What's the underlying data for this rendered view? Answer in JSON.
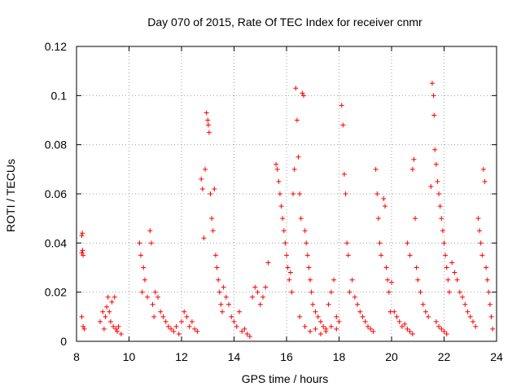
{
  "chart_data": {
    "type": "scatter",
    "title": "Day 070 of 2015, Rate Of TEC Index for receiver cnmr",
    "xlabel": "GPS time / hours",
    "ylabel": "ROTI / TECUs",
    "xlim": [
      8,
      24
    ],
    "ylim": [
      0,
      0.12
    ],
    "xticks": [
      8,
      10,
      12,
      14,
      16,
      18,
      20,
      22,
      24
    ],
    "xtick_labels": [
      "8",
      "10",
      "12",
      "14",
      "16",
      "18",
      "20",
      "22",
      "24"
    ],
    "yticks": [
      0,
      0.02,
      0.04,
      0.06,
      0.08,
      0.1,
      0.12
    ],
    "ytick_labels": [
      "0",
      "0.02",
      "0.04",
      "0.06",
      "0.08",
      "0.1",
      "0.12"
    ],
    "grid": true,
    "marker": "+",
    "color": "#ff0000",
    "series": [
      {
        "name": "ROTI",
        "points": [
          [
            8.2,
            0.043
          ],
          [
            8.22,
            0.044
          ],
          [
            8.2,
            0.036
          ],
          [
            8.25,
            0.035
          ],
          [
            8.23,
            0.037
          ],
          [
            8.2,
            0.01
          ],
          [
            8.25,
            0.006
          ],
          [
            8.3,
            0.005
          ],
          [
            8.9,
            0.008
          ],
          [
            9.0,
            0.012
          ],
          [
            9.05,
            0.005
          ],
          [
            9.1,
            0.01
          ],
          [
            9.15,
            0.014
          ],
          [
            9.2,
            0.018
          ],
          [
            9.25,
            0.012
          ],
          [
            9.3,
            0.008
          ],
          [
            9.35,
            0.016
          ],
          [
            9.4,
            0.006
          ],
          [
            9.45,
            0.018
          ],
          [
            9.5,
            0.005
          ],
          [
            9.55,
            0.004
          ],
          [
            9.6,
            0.006
          ],
          [
            9.7,
            0.003
          ],
          [
            10.4,
            0.04
          ],
          [
            10.45,
            0.035
          ],
          [
            10.5,
            0.02
          ],
          [
            10.55,
            0.03
          ],
          [
            10.6,
            0.025
          ],
          [
            10.7,
            0.018
          ],
          [
            10.8,
            0.045
          ],
          [
            10.85,
            0.04
          ],
          [
            10.9,
            0.015
          ],
          [
            10.95,
            0.01
          ],
          [
            11.0,
            0.02
          ],
          [
            11.1,
            0.018
          ],
          [
            11.2,
            0.012
          ],
          [
            11.3,
            0.01
          ],
          [
            11.4,
            0.008
          ],
          [
            11.5,
            0.006
          ],
          [
            11.6,
            0.005
          ],
          [
            11.7,
            0.004
          ],
          [
            11.8,
            0.006
          ],
          [
            11.9,
            0.003
          ],
          [
            12.0,
            0.008
          ],
          [
            12.1,
            0.012
          ],
          [
            12.2,
            0.01
          ],
          [
            12.3,
            0.006
          ],
          [
            12.4,
            0.008
          ],
          [
            12.5,
            0.005
          ],
          [
            12.6,
            0.004
          ],
          [
            12.75,
            0.066
          ],
          [
            12.8,
            0.062
          ],
          [
            12.85,
            0.042
          ],
          [
            12.9,
            0.07
          ],
          [
            12.95,
            0.093
          ],
          [
            13.0,
            0.09
          ],
          [
            13.02,
            0.088
          ],
          [
            13.05,
            0.085
          ],
          [
            13.1,
            0.06
          ],
          [
            13.15,
            0.05
          ],
          [
            13.2,
            0.045
          ],
          [
            13.25,
            0.062
          ],
          [
            13.3,
            0.035
          ],
          [
            13.35,
            0.03
          ],
          [
            13.4,
            0.025
          ],
          [
            13.45,
            0.02
          ],
          [
            13.5,
            0.015
          ],
          [
            13.55,
            0.012
          ],
          [
            13.6,
            0.022
          ],
          [
            13.7,
            0.018
          ],
          [
            13.8,
            0.015
          ],
          [
            13.9,
            0.01
          ],
          [
            14.0,
            0.008
          ],
          [
            14.1,
            0.006
          ],
          [
            14.2,
            0.012
          ],
          [
            14.3,
            0.004
          ],
          [
            14.4,
            0.005
          ],
          [
            14.5,
            0.003
          ],
          [
            14.6,
            0.002
          ],
          [
            14.7,
            0.018
          ],
          [
            14.8,
            0.022
          ],
          [
            14.9,
            0.02
          ],
          [
            15.0,
            0.015
          ],
          [
            15.1,
            0.018
          ],
          [
            15.2,
            0.022
          ],
          [
            15.3,
            0.032
          ],
          [
            15.6,
            0.072
          ],
          [
            15.65,
            0.07
          ],
          [
            15.7,
            0.065
          ],
          [
            15.75,
            0.06
          ],
          [
            15.8,
            0.055
          ],
          [
            15.85,
            0.05
          ],
          [
            15.9,
            0.045
          ],
          [
            15.95,
            0.04
          ],
          [
            16.0,
            0.035
          ],
          [
            16.05,
            0.03
          ],
          [
            16.1,
            0.025
          ],
          [
            16.15,
            0.028
          ],
          [
            16.2,
            0.02
          ],
          [
            16.25,
            0.06
          ],
          [
            16.3,
            0.07
          ],
          [
            16.35,
            0.103
          ],
          [
            16.4,
            0.09
          ],
          [
            16.45,
            0.075
          ],
          [
            16.5,
            0.06
          ],
          [
            16.55,
            0.05
          ],
          [
            16.6,
            0.101
          ],
          [
            16.65,
            0.1
          ],
          [
            16.7,
            0.045
          ],
          [
            16.75,
            0.04
          ],
          [
            16.8,
            0.035
          ],
          [
            16.85,
            0.03
          ],
          [
            16.9,
            0.025
          ],
          [
            16.95,
            0.02
          ],
          [
            17.0,
            0.015
          ],
          [
            17.1,
            0.012
          ],
          [
            17.2,
            0.01
          ],
          [
            17.3,
            0.008
          ],
          [
            17.4,
            0.006
          ],
          [
            17.5,
            0.005
          ],
          [
            17.6,
            0.015
          ],
          [
            17.7,
            0.02
          ],
          [
            17.8,
            0.025
          ],
          [
            17.9,
            0.01
          ],
          [
            18.0,
            0.008
          ],
          [
            16.5,
            0.01
          ],
          [
            16.7,
            0.006
          ],
          [
            16.9,
            0.004
          ],
          [
            17.1,
            0.005
          ],
          [
            17.3,
            0.003
          ],
          [
            17.5,
            0.004
          ],
          [
            17.7,
            0.006
          ],
          [
            17.9,
            0.005
          ],
          [
            18.1,
            0.096
          ],
          [
            18.15,
            0.088
          ],
          [
            18.2,
            0.068
          ],
          [
            18.25,
            0.06
          ],
          [
            18.3,
            0.04
          ],
          [
            18.35,
            0.035
          ],
          [
            18.4,
            0.02
          ],
          [
            18.5,
            0.025
          ],
          [
            18.6,
            0.018
          ],
          [
            18.7,
            0.015
          ],
          [
            18.8,
            0.012
          ],
          [
            18.9,
            0.01
          ],
          [
            19.0,
            0.008
          ],
          [
            19.1,
            0.006
          ],
          [
            19.2,
            0.005
          ],
          [
            19.3,
            0.004
          ],
          [
            19.4,
            0.07
          ],
          [
            19.45,
            0.06
          ],
          [
            19.5,
            0.05
          ],
          [
            19.55,
            0.04
          ],
          [
            19.6,
            0.035
          ],
          [
            19.7,
            0.058
          ],
          [
            19.75,
            0.055
          ],
          [
            19.8,
            0.03
          ],
          [
            19.85,
            0.025
          ],
          [
            19.9,
            0.02
          ],
          [
            19.95,
            0.012
          ],
          [
            20.0,
            0.024
          ],
          [
            20.1,
            0.012
          ],
          [
            20.2,
            0.01
          ],
          [
            20.3,
            0.008
          ],
          [
            20.4,
            0.006
          ],
          [
            20.5,
            0.007
          ],
          [
            20.6,
            0.005
          ],
          [
            20.7,
            0.004
          ],
          [
            20.8,
            0.003
          ],
          [
            20.6,
            0.04
          ],
          [
            20.7,
            0.035
          ],
          [
            20.8,
            0.07
          ],
          [
            20.85,
            0.074
          ],
          [
            20.9,
            0.05
          ],
          [
            20.95,
            0.03
          ],
          [
            21.0,
            0.025
          ],
          [
            21.1,
            0.02
          ],
          [
            21.2,
            0.015
          ],
          [
            21.3,
            0.012
          ],
          [
            21.4,
            0.01
          ],
          [
            21.5,
            0.063
          ],
          [
            21.55,
            0.105
          ],
          [
            21.6,
            0.1
          ],
          [
            21.62,
            0.092
          ],
          [
            21.65,
            0.078
          ],
          [
            21.7,
            0.072
          ],
          [
            21.75,
            0.065
          ],
          [
            21.8,
            0.06
          ],
          [
            21.85,
            0.055
          ],
          [
            21.9,
            0.05
          ],
          [
            21.95,
            0.045
          ],
          [
            22.0,
            0.04
          ],
          [
            22.05,
            0.035
          ],
          [
            22.1,
            0.03
          ],
          [
            22.15,
            0.025
          ],
          [
            22.2,
            0.02
          ],
          [
            21.7,
            0.008
          ],
          [
            21.8,
            0.006
          ],
          [
            21.9,
            0.005
          ],
          [
            22.0,
            0.004
          ],
          [
            22.1,
            0.003
          ],
          [
            22.3,
            0.032
          ],
          [
            22.4,
            0.028
          ],
          [
            22.5,
            0.025
          ],
          [
            22.6,
            0.02
          ],
          [
            22.7,
            0.018
          ],
          [
            22.8,
            0.015
          ],
          [
            22.9,
            0.012
          ],
          [
            23.0,
            0.01
          ],
          [
            23.1,
            0.008
          ],
          [
            23.2,
            0.006
          ],
          [
            23.3,
            0.05
          ],
          [
            23.35,
            0.045
          ],
          [
            23.4,
            0.04
          ],
          [
            23.45,
            0.035
          ],
          [
            23.5,
            0.07
          ],
          [
            23.55,
            0.065
          ],
          [
            23.6,
            0.03
          ],
          [
            23.65,
            0.025
          ],
          [
            23.7,
            0.02
          ],
          [
            23.75,
            0.015
          ],
          [
            23.8,
            0.01
          ],
          [
            23.85,
            0.005
          ]
        ]
      }
    ]
  }
}
